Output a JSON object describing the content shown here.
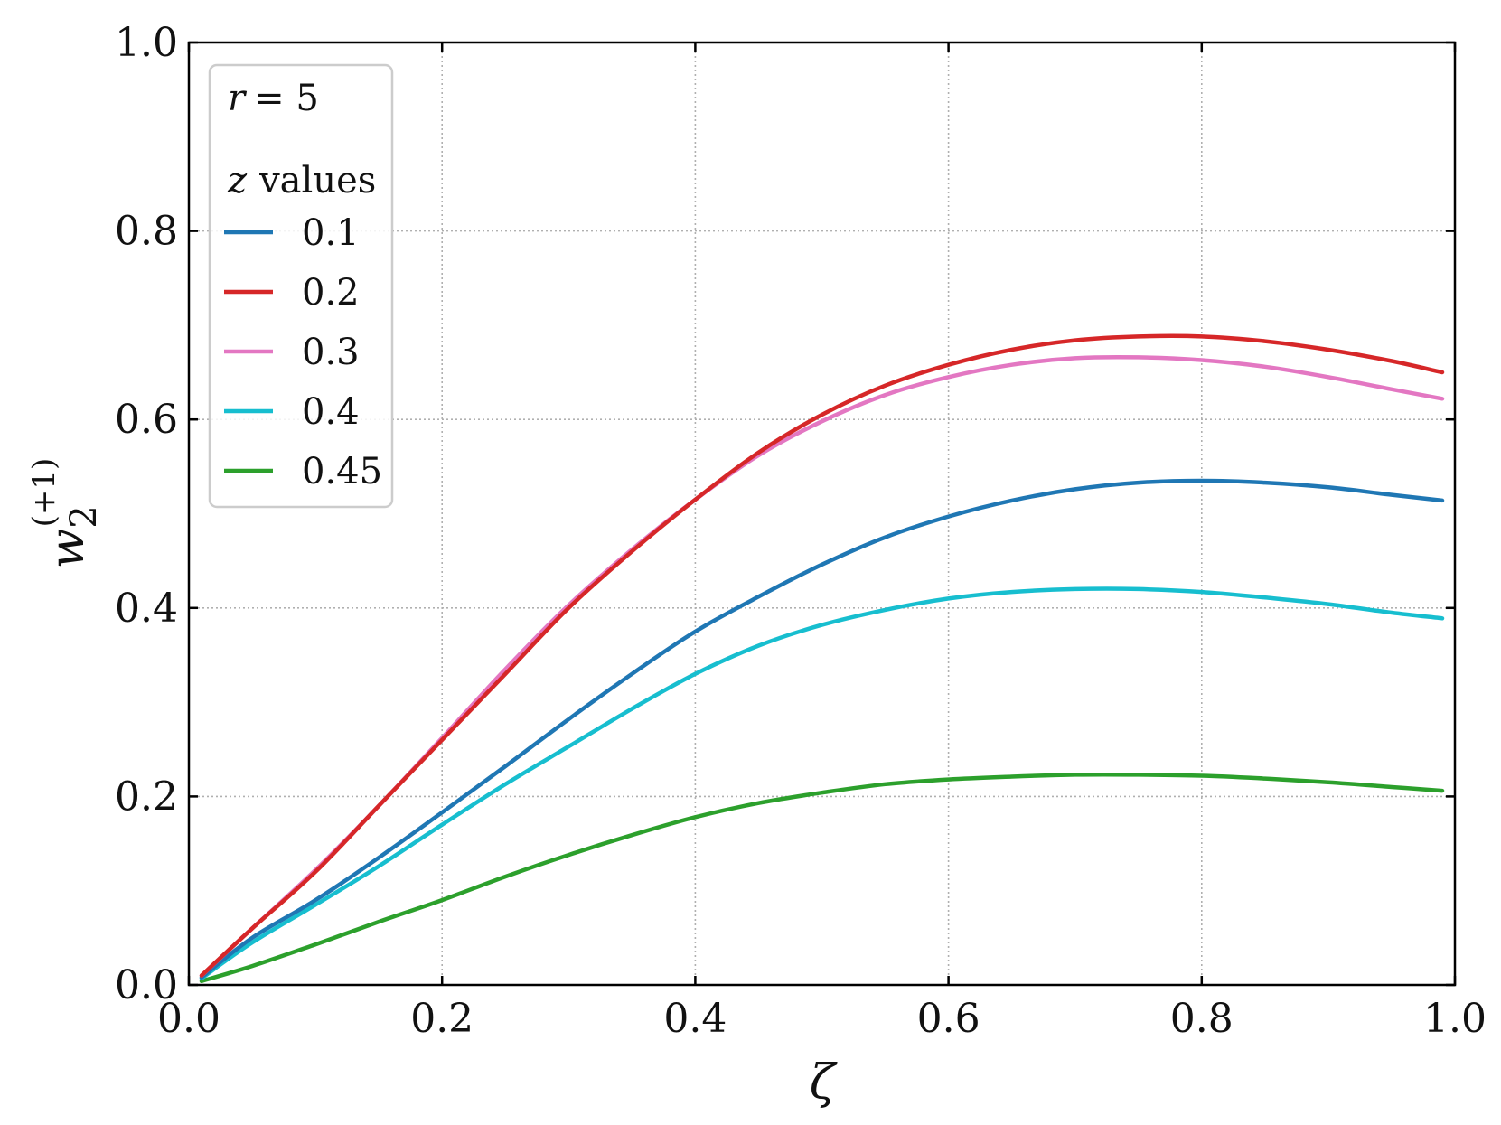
{
  "chart_data": {
    "type": "line",
    "title": "",
    "xlabel": "ζ",
    "ylabel": {
      "base": "w",
      "subscript": "2",
      "superscript": "(+1)"
    },
    "xlim": [
      0.0,
      1.0
    ],
    "ylim": [
      0.0,
      1.0
    ],
    "xticks": [
      "0.0",
      "0.2",
      "0.4",
      "0.6",
      "0.8",
      "1.0"
    ],
    "yticks": [
      "0.0",
      "0.2",
      "0.4",
      "0.6",
      "0.8",
      "1.0"
    ],
    "grid": true,
    "legend": {
      "placement": "top-left",
      "param_var": "r",
      "param_eq": "= 5",
      "header_var": "z",
      "header_text": "values"
    },
    "x": [
      0.01,
      0.05,
      0.1,
      0.15,
      0.2,
      0.25,
      0.3,
      0.35,
      0.4,
      0.45,
      0.5,
      0.55,
      0.6,
      0.65,
      0.7,
      0.75,
      0.8,
      0.85,
      0.9,
      0.95,
      0.99
    ],
    "series": [
      {
        "name": "0.1",
        "color": "#1f77b4",
        "values": [
          0.008,
          0.05,
          0.09,
          0.135,
          0.183,
          0.232,
          0.282,
          0.33,
          0.375,
          0.412,
          0.446,
          0.475,
          0.497,
          0.514,
          0.526,
          0.533,
          0.535,
          0.533,
          0.528,
          0.52,
          0.514
        ]
      },
      {
        "name": "0.2",
        "color": "#d62728",
        "values": [
          0.01,
          0.06,
          0.12,
          0.19,
          0.26,
          0.33,
          0.4,
          0.46,
          0.515,
          0.565,
          0.605,
          0.636,
          0.658,
          0.674,
          0.684,
          0.688,
          0.688,
          0.683,
          0.674,
          0.662,
          0.65
        ]
      },
      {
        "name": "0.3",
        "color": "#e377c2",
        "values": [
          0.01,
          0.06,
          0.122,
          0.19,
          0.262,
          0.335,
          0.403,
          0.462,
          0.515,
          0.562,
          0.598,
          0.626,
          0.645,
          0.658,
          0.665,
          0.666,
          0.663,
          0.656,
          0.645,
          0.632,
          0.622
        ]
      },
      {
        "name": "0.4",
        "color": "#17becf",
        "values": [
          0.007,
          0.045,
          0.085,
          0.126,
          0.17,
          0.213,
          0.253,
          0.293,
          0.33,
          0.36,
          0.382,
          0.398,
          0.41,
          0.417,
          0.42,
          0.42,
          0.417,
          0.411,
          0.404,
          0.395,
          0.389
        ]
      },
      {
        "name": "0.45",
        "color": "#2ca02c",
        "values": [
          0.004,
          0.02,
          0.043,
          0.067,
          0.09,
          0.115,
          0.138,
          0.159,
          0.178,
          0.193,
          0.204,
          0.213,
          0.218,
          0.221,
          0.223,
          0.223,
          0.222,
          0.219,
          0.215,
          0.21,
          0.206
        ]
      }
    ]
  }
}
